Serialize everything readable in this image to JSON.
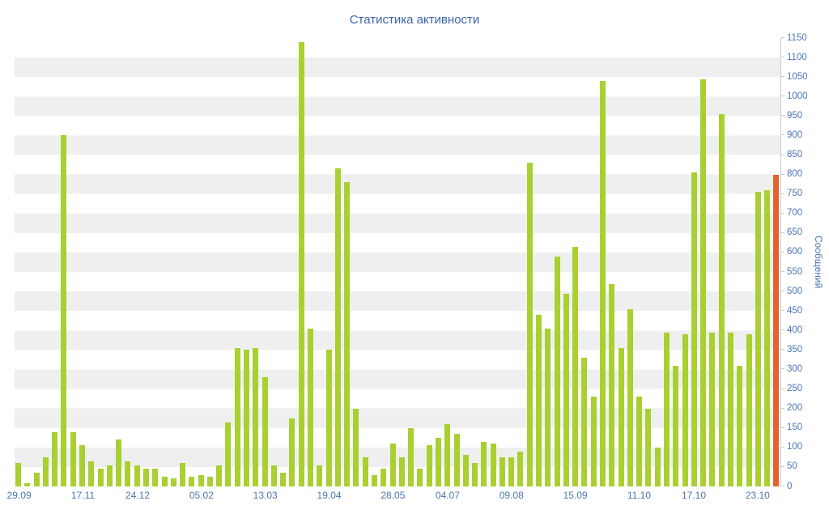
{
  "chart_data": {
    "type": "bar",
    "title": "Статистика активности",
    "ylabel": "Сообщений",
    "ylim": [
      0,
      1150
    ],
    "y_tick_step": 50,
    "grid": "alternating-horizontal-bands",
    "legend": "none",
    "y_axis_position": "right",
    "y_ticks": [
      0,
      50,
      100,
      150,
      200,
      250,
      300,
      350,
      400,
      450,
      500,
      550,
      600,
      650,
      700,
      750,
      800,
      850,
      900,
      950,
      1000,
      1050,
      1100,
      1150
    ],
    "x_tick_labels": [
      {
        "index": 0,
        "label": "29.09"
      },
      {
        "index": 7,
        "label": "17.11"
      },
      {
        "index": 13,
        "label": "24.12"
      },
      {
        "index": 20,
        "label": "05.02"
      },
      {
        "index": 27,
        "label": "13.03"
      },
      {
        "index": 34,
        "label": "19.04"
      },
      {
        "index": 41,
        "label": "28.05"
      },
      {
        "index": 47,
        "label": "04.07"
      },
      {
        "index": 54,
        "label": "09.08"
      },
      {
        "index": 61,
        "label": "15.09"
      },
      {
        "index": 68,
        "label": "11.10"
      },
      {
        "index": 74,
        "label": "17.10"
      },
      {
        "index": 81,
        "label": "23.10"
      }
    ],
    "values": [
      60,
      8,
      35,
      75,
      140,
      900,
      140,
      105,
      65,
      45,
      55,
      120,
      65,
      55,
      45,
      45,
      25,
      20,
      60,
      25,
      30,
      25,
      55,
      165,
      355,
      350,
      355,
      280,
      55,
      35,
      175,
      1140,
      405,
      55,
      350,
      815,
      780,
      200,
      75,
      30,
      45,
      110,
      75,
      150,
      45,
      105,
      125,
      160,
      135,
      80,
      60,
      115,
      110,
      75,
      75,
      90,
      830,
      440,
      405,
      590,
      495,
      615,
      330,
      230,
      1040,
      520,
      355,
      455,
      230,
      200,
      100,
      395,
      310,
      390,
      805,
      1045,
      395,
      955,
      395,
      310,
      390,
      755,
      760,
      800
    ],
    "highlight_index": 83,
    "colors": {
      "bar": "#a8d030",
      "highlight": "#e2632b",
      "stripe": "#efefef",
      "axis_text": "#4a76b4",
      "title_text": "#3b66ad",
      "axis_line": "#c6cedd"
    }
  }
}
